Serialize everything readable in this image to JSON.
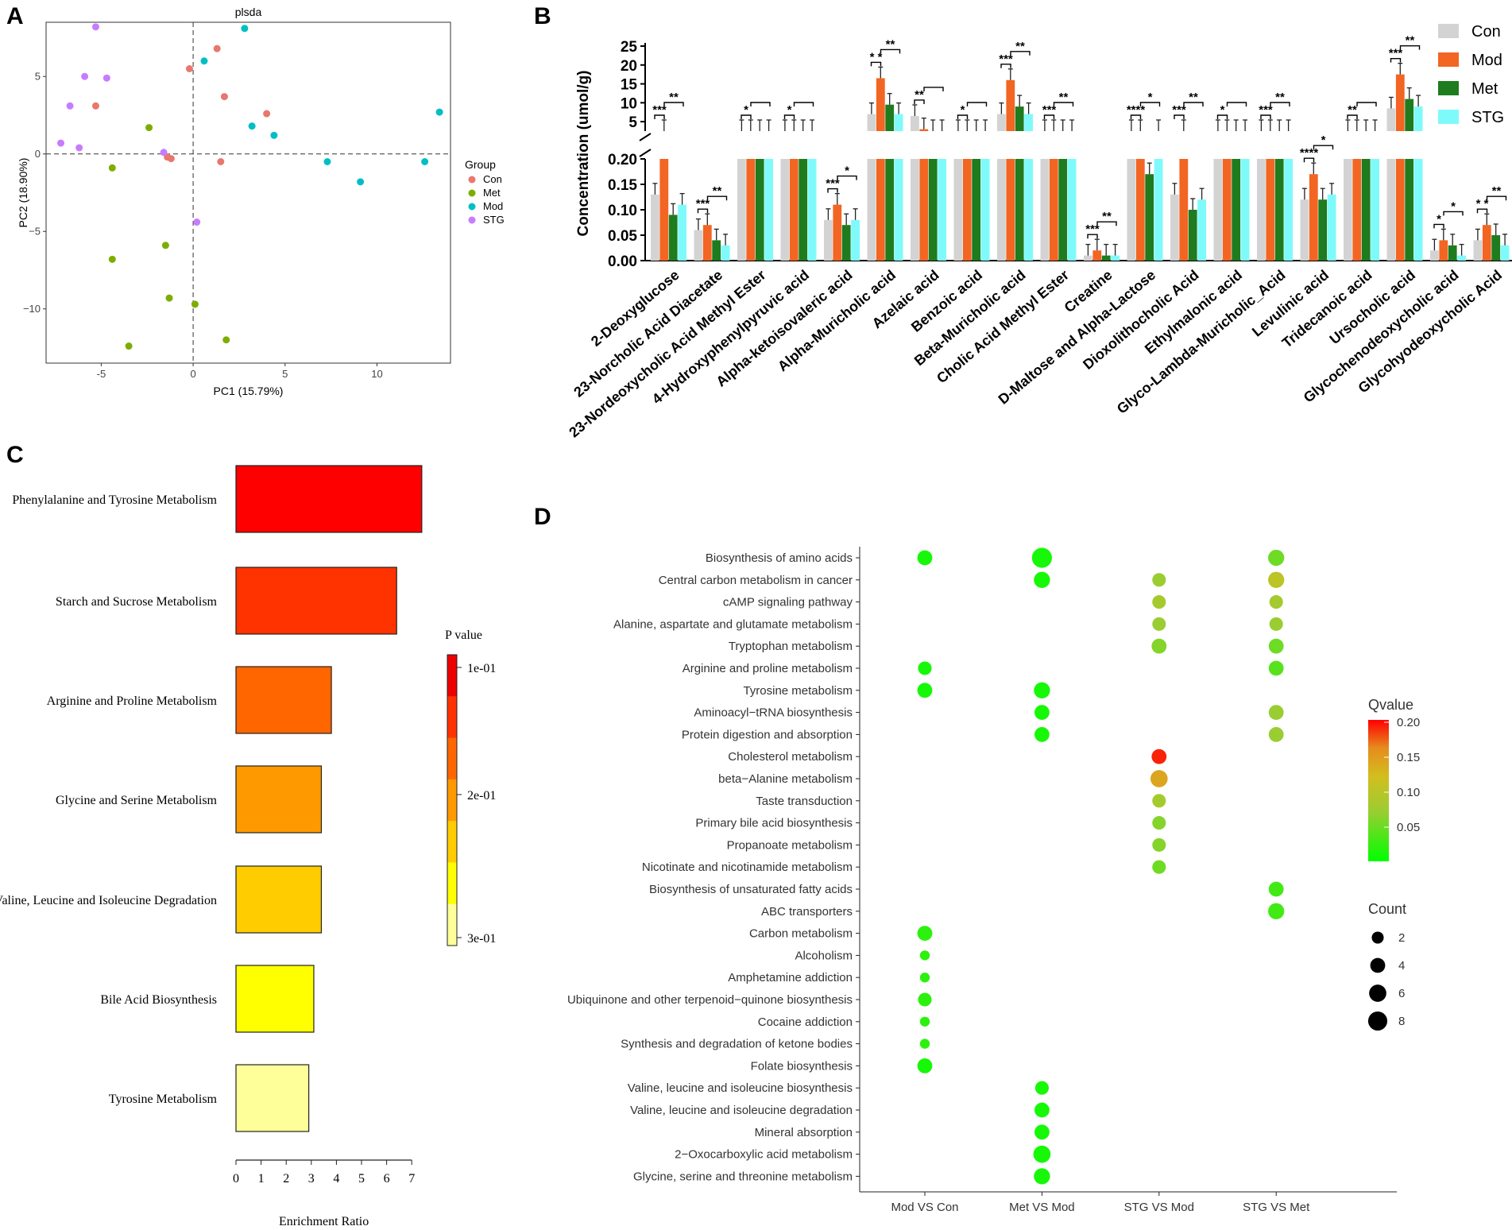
{
  "panels": {
    "a": "A",
    "b": "B",
    "c": "C",
    "d": "D"
  },
  "chart_data": [
    {
      "id": "A",
      "type": "scatter",
      "title": "plsda",
      "xlabel": "PC1 (15.79%)",
      "ylabel": "PC2 (18.90%)",
      "xlim": [
        -8,
        14
      ],
      "ylim": [
        -13.5,
        8.5
      ],
      "xticks": [
        -5,
        0,
        5,
        10
      ],
      "yticks": [
        5,
        0,
        -5,
        -10
      ],
      "legend_title": "Group",
      "series": [
        {
          "name": "Con",
          "color": "#E8776E",
          "points": [
            [
              -0.2,
              5.5
            ],
            [
              1.3,
              6.8
            ],
            [
              1.7,
              3.7
            ],
            [
              4,
              2.6
            ],
            [
              -1.4,
              -0.2
            ],
            [
              -1.2,
              -0.3
            ],
            [
              1.5,
              -0.5
            ],
            [
              -5.3,
              3.1
            ]
          ]
        },
        {
          "name": "Met",
          "color": "#7CAE00",
          "points": [
            [
              -2.4,
              1.7
            ],
            [
              -4.4,
              -0.9
            ],
            [
              -1.5,
              -5.9
            ],
            [
              -4.4,
              -6.8
            ],
            [
              -1.3,
              -9.3
            ],
            [
              0.1,
              -9.7
            ],
            [
              -3.5,
              -12.4
            ],
            [
              1.8,
              -12
            ]
          ]
        },
        {
          "name": "Mod",
          "color": "#00BFC4",
          "points": [
            [
              2.8,
              8.1
            ],
            [
              0.6,
              6
            ],
            [
              3.2,
              1.8
            ],
            [
              4.4,
              1.2
            ],
            [
              7.3,
              -0.5
            ],
            [
              9.1,
              -1.8
            ],
            [
              12.6,
              -0.5
            ],
            [
              13.4,
              2.7
            ]
          ]
        },
        {
          "name": "STG",
          "color": "#C77CFF",
          "points": [
            [
              -5.3,
              8.2
            ],
            [
              -5.9,
              5
            ],
            [
              -4.7,
              4.9
            ],
            [
              -6.7,
              3.1
            ],
            [
              -7.2,
              0.7
            ],
            [
              -6.2,
              0.4
            ],
            [
              -1.6,
              0.1
            ],
            [
              0.2,
              -4.4
            ]
          ]
        }
      ]
    },
    {
      "id": "B",
      "type": "bar",
      "ylabel": "Concentration (umol/g)",
      "upper_ticks": [
        5,
        10,
        15,
        20,
        25
      ],
      "lower_ticks": [
        "0.00",
        "0.05",
        "0.10",
        "0.15",
        "0.20"
      ],
      "legend": [
        "Con",
        "Mod",
        "Met",
        "STG"
      ],
      "colors": [
        "#D3D3D3",
        "#F26522",
        "#1E7B1E",
        "#7FFAFA"
      ],
      "categories": [
        "2-Deoxyglucose",
        "23-Norcholic Acid Diacetate",
        "23-Nordeoxycholic Acid Methyl Ester",
        "4-Hydroxyphenylpyruvic acid",
        "Alpha-ketoisovaleric acid",
        "Alpha-Muricholic acid",
        "Azelaic acid",
        "Benzoic acid",
        "Beta-Muricholic acid",
        "Cholic Acid Methyl Ester",
        "Creatine",
        "D-Maltose and Alpha-Lactose",
        "Dioxolithocholic Acid",
        "Ethylmalonic acid",
        "Glyco-Lambda-Muricholic_Acid",
        "Levulinic acid",
        "Tridecanoic acid",
        "Ursocholic acid",
        "Glycochenodeoxycholic acid",
        "Glycohyodeoxycholic Acid"
      ],
      "series": [
        {
          "name": "Con",
          "values": [
            0.13,
            0.06,
            1,
            1,
            0.08,
            7,
            6.5,
            0.6,
            7,
            0.9,
            0.01,
            0.6,
            0.13,
            0.25,
            0.7,
            0.12,
            0.25,
            8.5,
            0.02,
            0.04
          ]
        },
        {
          "name": "Mod",
          "values": [
            1.5,
            0.07,
            1.2,
            0.8,
            0.11,
            16.5,
            3,
            0.5,
            16,
            1.8,
            0.02,
            0.7,
            1,
            0.3,
            1.5,
            0.17,
            0.3,
            17.5,
            0.04,
            0.07
          ]
        },
        {
          "name": "Met",
          "values": [
            0.09,
            0.04,
            0.9,
            0.8,
            0.07,
            9.5,
            2.5,
            0.5,
            9,
            0.8,
            0.01,
            0.17,
            0.1,
            0.25,
            0.7,
            0.12,
            0.25,
            11,
            0.03,
            0.05
          ]
        },
        {
          "name": "STG",
          "values": [
            0.11,
            0.03,
            1,
            0.9,
            0.08,
            7,
            2.5,
            0.6,
            7,
            1,
            0.01,
            0.6,
            0.12,
            0.25,
            1,
            0.13,
            0.25,
            9,
            0.01,
            0.03
          ]
        }
      ],
      "significance": [
        "***  **",
        "***  **",
        "*",
        "*",
        "***  *",
        "* *  **",
        "**",
        "*",
        "***  **",
        "***  **",
        "***  **",
        "****  *",
        "***  **",
        "*",
        "***  **",
        "****  *",
        "**",
        "***  **",
        "*  *",
        "* *  **"
      ]
    },
    {
      "id": "C",
      "type": "bar",
      "orientation": "horizontal",
      "xlabel": "Enrichment Ratio",
      "xlim": [
        0,
        7
      ],
      "xticks": [
        0,
        1,
        2,
        3,
        4,
        5,
        6,
        7
      ],
      "colorbar_title": "P value",
      "colorbar_ticks": [
        "1e-01",
        "2e-01",
        "3e-01"
      ],
      "categories": [
        "Phenylalanine and Tyrosine Metabolism",
        "Starch and Sucrose Metabolism",
        "Arginine and Proline Metabolism",
        "Glycine and Serine Metabolism",
        "Valine, Leucine and Isoleucine Degradation",
        "Bile Acid Biosynthesis",
        "Tyrosine Metabolism"
      ],
      "values": [
        7.4,
        6.4,
        3.8,
        3.4,
        3.4,
        3.1,
        2.9
      ],
      "colors": [
        "#FF0000",
        "#FF3300",
        "#FF6600",
        "#FF9900",
        "#FFCC00",
        "#FFFF00",
        "#FFFF99"
      ]
    },
    {
      "id": "D",
      "type": "scatter",
      "subtype": "bubble",
      "x_categories": [
        "Mod VS Con",
        "Met VS Mod",
        "STG VS Mod",
        "STG VS Met"
      ],
      "y_categories": [
        "Biosynthesis of amino acids",
        "Central carbon metabolism in cancer",
        "cAMP signaling pathway",
        "Alanine, aspartate and glutamate metabolism",
        "Tryptophan metabolism",
        "Arginine and proline metabolism",
        "Tyrosine metabolism",
        "Aminoacyl−tRNA biosynthesis",
        "Protein digestion and absorption",
        "Cholesterol metabolism",
        "beta−Alanine metabolism",
        "Taste transduction",
        "Primary bile acid biosynthesis",
        "Propanoate metabolism",
        "Nicotinate and nicotinamide metabolism",
        "Biosynthesis of unsaturated fatty acids",
        "ABC transporters",
        "Carbon metabolism",
        "Alcoholism",
        "Amphetamine addiction",
        "Ubiquinone and other terpenoid−quinone biosynthesis",
        "Cocaine addiction",
        "Synthesis and degradation of ketone bodies",
        "Folate biosynthesis",
        "Valine, leucine and isoleucine biosynthesis",
        "Valine, leucine and isoleucine degradation",
        "Mineral absorption",
        "2−Oxocarboxylic acid metabolism",
        "Glycine, serine and threonine metabolism"
      ],
      "points": [
        [
          "Mod VS Con",
          "Biosynthesis of amino acids",
          4,
          0.01
        ],
        [
          "Mod VS Con",
          "Arginine and proline metabolism",
          3,
          0.01
        ],
        [
          "Mod VS Con",
          "Tyrosine metabolism",
          4,
          0.01
        ],
        [
          "Mod VS Con",
          "Carbon metabolism",
          4,
          0.02
        ],
        [
          "Mod VS Con",
          "Alcoholism",
          1,
          0.02
        ],
        [
          "Mod VS Con",
          "Amphetamine addiction",
          1,
          0.02
        ],
        [
          "Mod VS Con",
          "Ubiquinone and other terpenoid−quinone biosynthesis",
          3,
          0.02
        ],
        [
          "Mod VS Con",
          "Cocaine addiction",
          1,
          0.02
        ],
        [
          "Mod VS Con",
          "Synthesis and degradation of ketone bodies",
          1,
          0.02
        ],
        [
          "Mod VS Con",
          "Folate biosynthesis",
          4,
          0.01
        ],
        [
          "Met VS Mod",
          "Biosynthesis of amino acids",
          9,
          0.01
        ],
        [
          "Met VS Mod",
          "Central carbon metabolism in cancer",
          5,
          0.01
        ],
        [
          "Met VS Mod",
          "Tyrosine metabolism",
          5,
          0.01
        ],
        [
          "Met VS Mod",
          "Aminoacyl−tRNA biosynthesis",
          4,
          0.01
        ],
        [
          "Met VS Mod",
          "Protein digestion and absorption",
          4,
          0.01
        ],
        [
          "Met VS Mod",
          "Valine, leucine and isoleucine biosynthesis",
          3,
          0.01
        ],
        [
          "Met VS Mod",
          "Valine, leucine and isoleucine degradation",
          4,
          0.01
        ],
        [
          "Met VS Mod",
          "Mineral absorption",
          4,
          0.01
        ],
        [
          "Met VS Mod",
          "2−Oxocarboxylic acid metabolism",
          6,
          0.01
        ],
        [
          "Met VS Mod",
          "Glycine, serine and threonine metabolism",
          5,
          0.01
        ],
        [
          "STG VS Mod",
          "Central carbon metabolism in cancer",
          3,
          0.07
        ],
        [
          "STG VS Mod",
          "cAMP signaling pathway",
          3,
          0.08
        ],
        [
          "STG VS Mod",
          "Alanine, aspartate and glutamate metabolism",
          3,
          0.07
        ],
        [
          "STG VS Mod",
          "Tryptophan metabolism",
          4,
          0.06
        ],
        [
          "STG VS Mod",
          "Cholesterol metabolism",
          4,
          0.19
        ],
        [
          "STG VS Mod",
          "beta−Alanine metabolism",
          6,
          0.14
        ],
        [
          "STG VS Mod",
          "Taste transduction",
          3,
          0.08
        ],
        [
          "STG VS Mod",
          "Primary bile acid biosynthesis",
          3,
          0.06
        ],
        [
          "STG VS Mod",
          "Propanoate metabolism",
          3,
          0.06
        ],
        [
          "STG VS Mod",
          "Nicotinate and nicotinamide metabolism",
          3,
          0.05
        ],
        [
          "STG VS Met",
          "Biosynthesis of amino acids",
          5,
          0.05
        ],
        [
          "STG VS Met",
          "Central carbon metabolism in cancer",
          5,
          0.1
        ],
        [
          "STG VS Met",
          "cAMP signaling pathway",
          3,
          0.08
        ],
        [
          "STG VS Met",
          "Alanine, aspartate and glutamate metabolism",
          3,
          0.07
        ],
        [
          "STG VS Met",
          "Tryptophan metabolism",
          4,
          0.05
        ],
        [
          "STG VS Met",
          "Arginine and proline metabolism",
          4,
          0.04
        ],
        [
          "STG VS Met",
          "Aminoacyl−tRNA biosynthesis",
          4,
          0.07
        ],
        [
          "STG VS Met",
          "Protein digestion and absorption",
          4,
          0.07
        ],
        [
          "STG VS Met",
          "Biosynthesis of unsaturated fatty acids",
          4,
          0.03
        ],
        [
          "STG VS Met",
          "ABC transporters",
          5,
          0.03
        ]
      ],
      "qvalue_title": "Qvalue",
      "qvalue_ticks": [
        "0.20",
        "0.15",
        "0.10",
        "0.05"
      ],
      "count_title": "Count",
      "count_ticks": [
        "2",
        "4",
        "6",
        "8"
      ]
    }
  ]
}
